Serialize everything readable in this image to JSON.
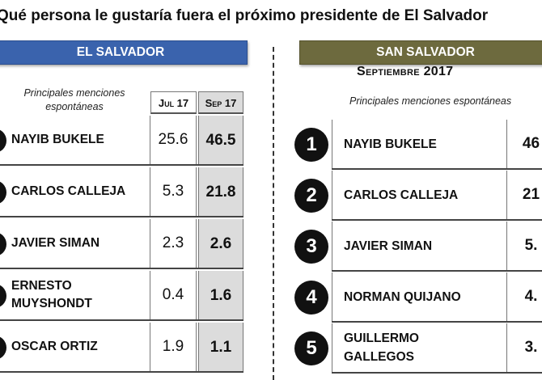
{
  "title": "Qué persona le gustaría fuera el próximo presidente de El Salvador",
  "left": {
    "banner": "EL SALVADOR",
    "note": "Principales menciones espontáneas",
    "col_jul": "Jul 17",
    "col_sep": "Sep 17",
    "rows": [
      {
        "name": "NAYIB BUKELE",
        "jul": "25.6",
        "sep": "46.5"
      },
      {
        "name": "CARLOS CALLEJA",
        "jul": "5.3",
        "sep": "21.8"
      },
      {
        "name": "JAVIER SIMAN",
        "jul": "2.3",
        "sep": "2.6"
      },
      {
        "name": "ERNESTO MUYSHONDT",
        "jul": "0.4",
        "sep": "1.6"
      },
      {
        "name": "OSCAR ORTIZ",
        "jul": "1.9",
        "sep": "1.1"
      }
    ]
  },
  "right": {
    "banner": "SAN SALVADOR",
    "subtitle": "Septiembre 2017",
    "note": "Principales menciones espontáneas",
    "rows": [
      {
        "rank": "1",
        "name": "NAYIB BUKELE",
        "value": "46"
      },
      {
        "rank": "2",
        "name": "CARLOS CALLEJA",
        "value": "21"
      },
      {
        "rank": "3",
        "name": "JAVIER SIMAN",
        "value": "5."
      },
      {
        "rank": "4",
        "name": "NORMAN QUIJANO",
        "value": "4."
      },
      {
        "rank": "5",
        "name": "GUILLERMO GALLEGOS",
        "value": "3."
      }
    ]
  }
}
